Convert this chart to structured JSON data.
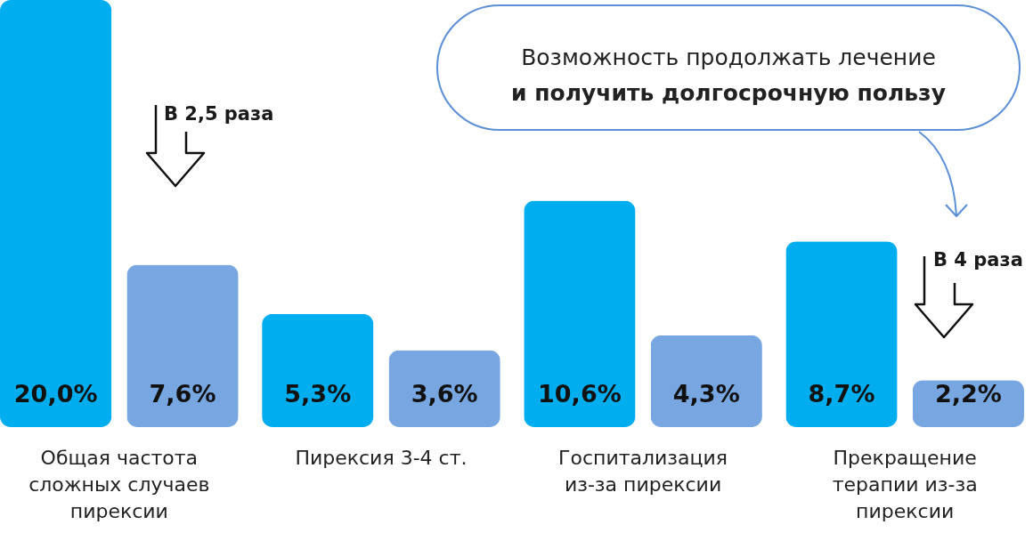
{
  "chart_data": {
    "type": "bar",
    "categories": [
      "Общая частота сложных случаев пирексии",
      "Пирексия 3-4 ст.",
      "Госпитализация из-за пирексии",
      "Прекращение терапии из-за пирексии"
    ],
    "series": [
      {
        "color": "#00aeef",
        "values": [
          20.0,
          5.3,
          10.6,
          8.7
        ],
        "value_labels": [
          "20,0%",
          "5,3%",
          "10,6%",
          "8,7%"
        ]
      },
      {
        "color": "#78a6e0",
        "values": [
          7.6,
          3.6,
          4.3,
          2.2
        ],
        "value_labels": [
          "7,6%",
          "3,6%",
          "4,3%",
          "2,2%"
        ]
      }
    ],
    "annotations": [
      "В 2,5 раза",
      "В 4 раза",
      "Возможность продолжать лечение",
      "и получить долгосрочную пользу"
    ]
  }
}
